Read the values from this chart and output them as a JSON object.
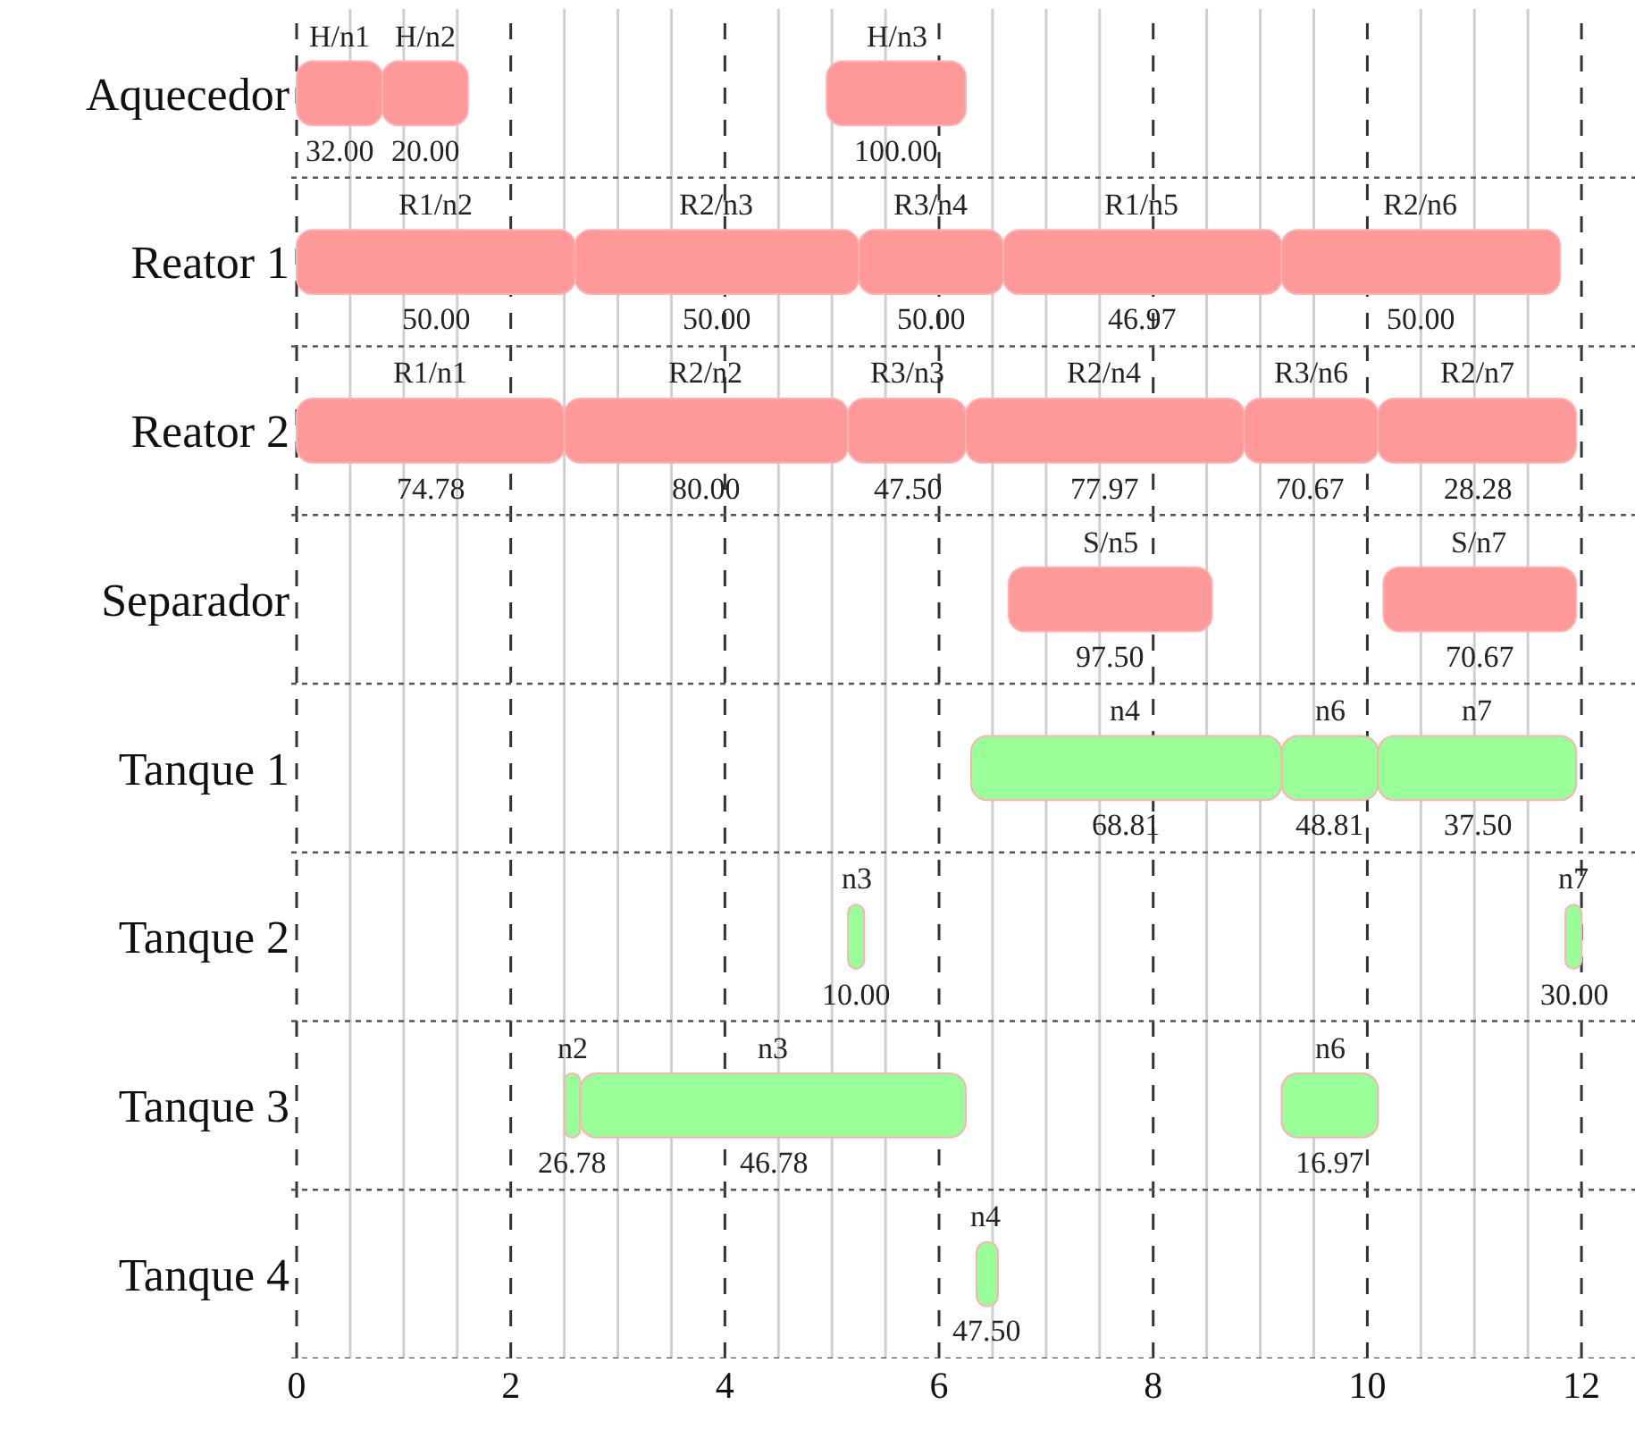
{
  "chart_data": {
    "type": "bar",
    "orientation": "horizontal",
    "categories": [
      "Aquecedor",
      "Reator 1",
      "Reator 2",
      "Separador",
      "Tanque 1",
      "Tanque 2",
      "Tanque 3",
      "Tanque 4"
    ],
    "series": [
      {
        "colors": [
          "#ff9999",
          "#ff9999",
          "#ff9999",
          "#ff9999",
          "#99ff99",
          "#99ff99",
          "#99ff99",
          "#99ff99"
        ],
        "base": [
          0,
          0,
          0,
          6.65,
          6.3,
          5.15,
          2.5,
          6.35
        ],
        "values": [
          0.8,
          2.6,
          2.5,
          1.9,
          2.9,
          0.15,
          0.15,
          0.2
        ]
      },
      {
        "colors": [
          "#ff9999",
          "#ff9999",
          "#ff9999",
          "#ff9999",
          "#99ff99",
          "#99ff99",
          "#99ff99",
          null
        ],
        "base": [
          0.8,
          2.6,
          2.5,
          10.15,
          9.2,
          11.85,
          2.65,
          null
        ],
        "values": [
          0.8,
          2.65,
          2.65,
          1.8,
          0.9,
          0.15,
          3.6,
          null
        ]
      },
      {
        "colors": [
          "#ff9999",
          "#ff9999",
          "#ff9999",
          null,
          "#99ff99",
          null,
          "#99ff99",
          null
        ],
        "base": [
          4.95,
          5.25,
          5.15,
          null,
          10.1,
          null,
          9.2,
          null
        ],
        "values": [
          1.3,
          1.35,
          1.1,
          null,
          1.85,
          null,
          0.9,
          null
        ]
      },
      {
        "colors": [
          null,
          "#ff9999",
          "#ff9999",
          null,
          null,
          null,
          null,
          null
        ],
        "base": [
          null,
          6.6,
          6.25,
          null,
          null,
          null,
          null,
          null
        ],
        "values": [
          null,
          2.6,
          2.6,
          null,
          null,
          null,
          null,
          null
        ]
      },
      {
        "colors": [
          null,
          "#ff9999",
          "#ff9999",
          null,
          null,
          null,
          null,
          null
        ],
        "base": [
          null,
          9.2,
          8.85,
          null,
          null,
          null,
          null,
          null
        ],
        "values": [
          null,
          2.6,
          1.25,
          null,
          null,
          null,
          null,
          null
        ]
      },
      {
        "colors": [
          null,
          null,
          "#ff9999",
          null,
          null,
          null,
          null,
          null
        ],
        "base": [
          null,
          null,
          10.1,
          null,
          null,
          null,
          null,
          null
        ],
        "values": [
          null,
          null,
          1.85,
          null,
          null,
          null,
          null,
          null
        ]
      }
    ],
    "annotations": [
      "H/n1",
      "32.00",
      "H/n2",
      "20.00",
      "H/n3",
      "100.00",
      "R1/n2",
      "50.00",
      "R2/n3",
      "50.00",
      "R3/n4",
      "50.00",
      "R1/n5",
      "46.97",
      "R2/n6",
      "50.00",
      "R1/n1",
      "74.78",
      "R2/n2",
      "80.00",
      "R3/n3",
      "47.50",
      "R2/n4",
      "77.97",
      "R3/n6",
      "70.67",
      "R2/n7",
      "28.28",
      "S/n5",
      "97.50",
      "S/n7",
      "70.67",
      "n4",
      "68.81",
      "n6",
      "48.81",
      "n7",
      "37.50",
      "n3",
      "10.00",
      "n7",
      "30.00",
      "n2",
      "26.78",
      "n3",
      "46.78",
      "n6",
      "16.97",
      "n4",
      "47.50"
    ],
    "xlim": [
      -0.05,
      12.5
    ],
    "xticks": [
      0,
      {
        "value": 0.5,
        "label": null
      },
      {
        "value": 1,
        "label": null
      },
      {
        "value": 1.5,
        "label": null
      },
      2,
      {
        "value": 2.5,
        "label": null
      },
      {
        "value": 3,
        "label": null
      },
      {
        "value": 3.5,
        "label": null
      },
      4,
      {
        "value": 4.5,
        "label": null
      },
      {
        "value": 5,
        "label": null
      },
      {
        "value": 5.5,
        "label": null
      },
      6,
      {
        "value": 6.5,
        "label": null
      },
      {
        "value": 7,
        "label": null
      },
      {
        "value": 7.5,
        "label": null
      },
      8,
      {
        "value": 8.5,
        "label": null
      },
      {
        "value": 9,
        "label": null
      },
      {
        "value": 9.5,
        "label": null
      },
      10,
      {
        "value": 10.5,
        "label": null
      },
      {
        "value": 11,
        "label": null
      },
      {
        "value": 11.5,
        "label": null
      },
      12
    ],
    "grid": true
  }
}
